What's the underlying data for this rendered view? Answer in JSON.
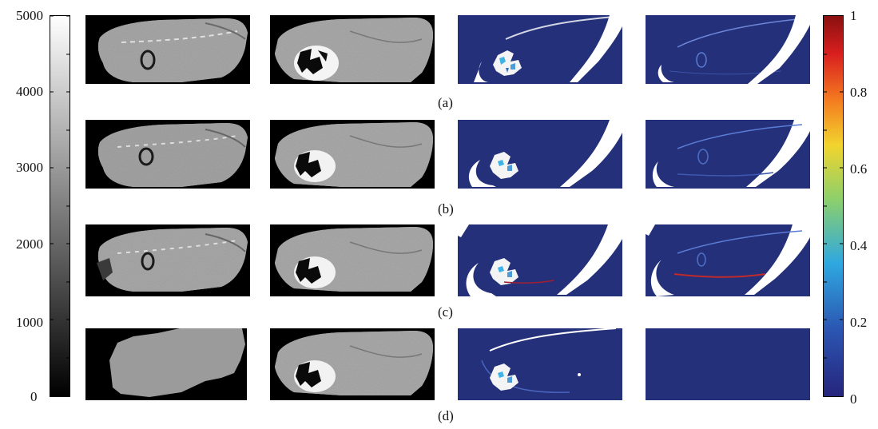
{
  "left_colorbar": {
    "ticks": [
      "5000",
      "4000",
      "3000",
      "2000",
      "1000",
      "0"
    ],
    "gradient": [
      "#000000",
      "#ffffff"
    ]
  },
  "right_colorbar": {
    "ticks": [
      "1",
      "0.8",
      "0.6",
      "0.4",
      "0.2",
      "0"
    ],
    "colormap": [
      "#26247c",
      "#2b57b3",
      "#2fa8e0",
      "#8ed06a",
      "#f2d42e",
      "#f47a20",
      "#d91f1f",
      "#8a1010"
    ]
  },
  "rows": [
    {
      "label": "(a)"
    },
    {
      "label": "(b)"
    },
    {
      "label": "(c)"
    },
    {
      "label": "(d)"
    }
  ],
  "colors": {
    "map_background": "#24307a",
    "mask": "#ffffff",
    "scan_background": "#000000"
  }
}
